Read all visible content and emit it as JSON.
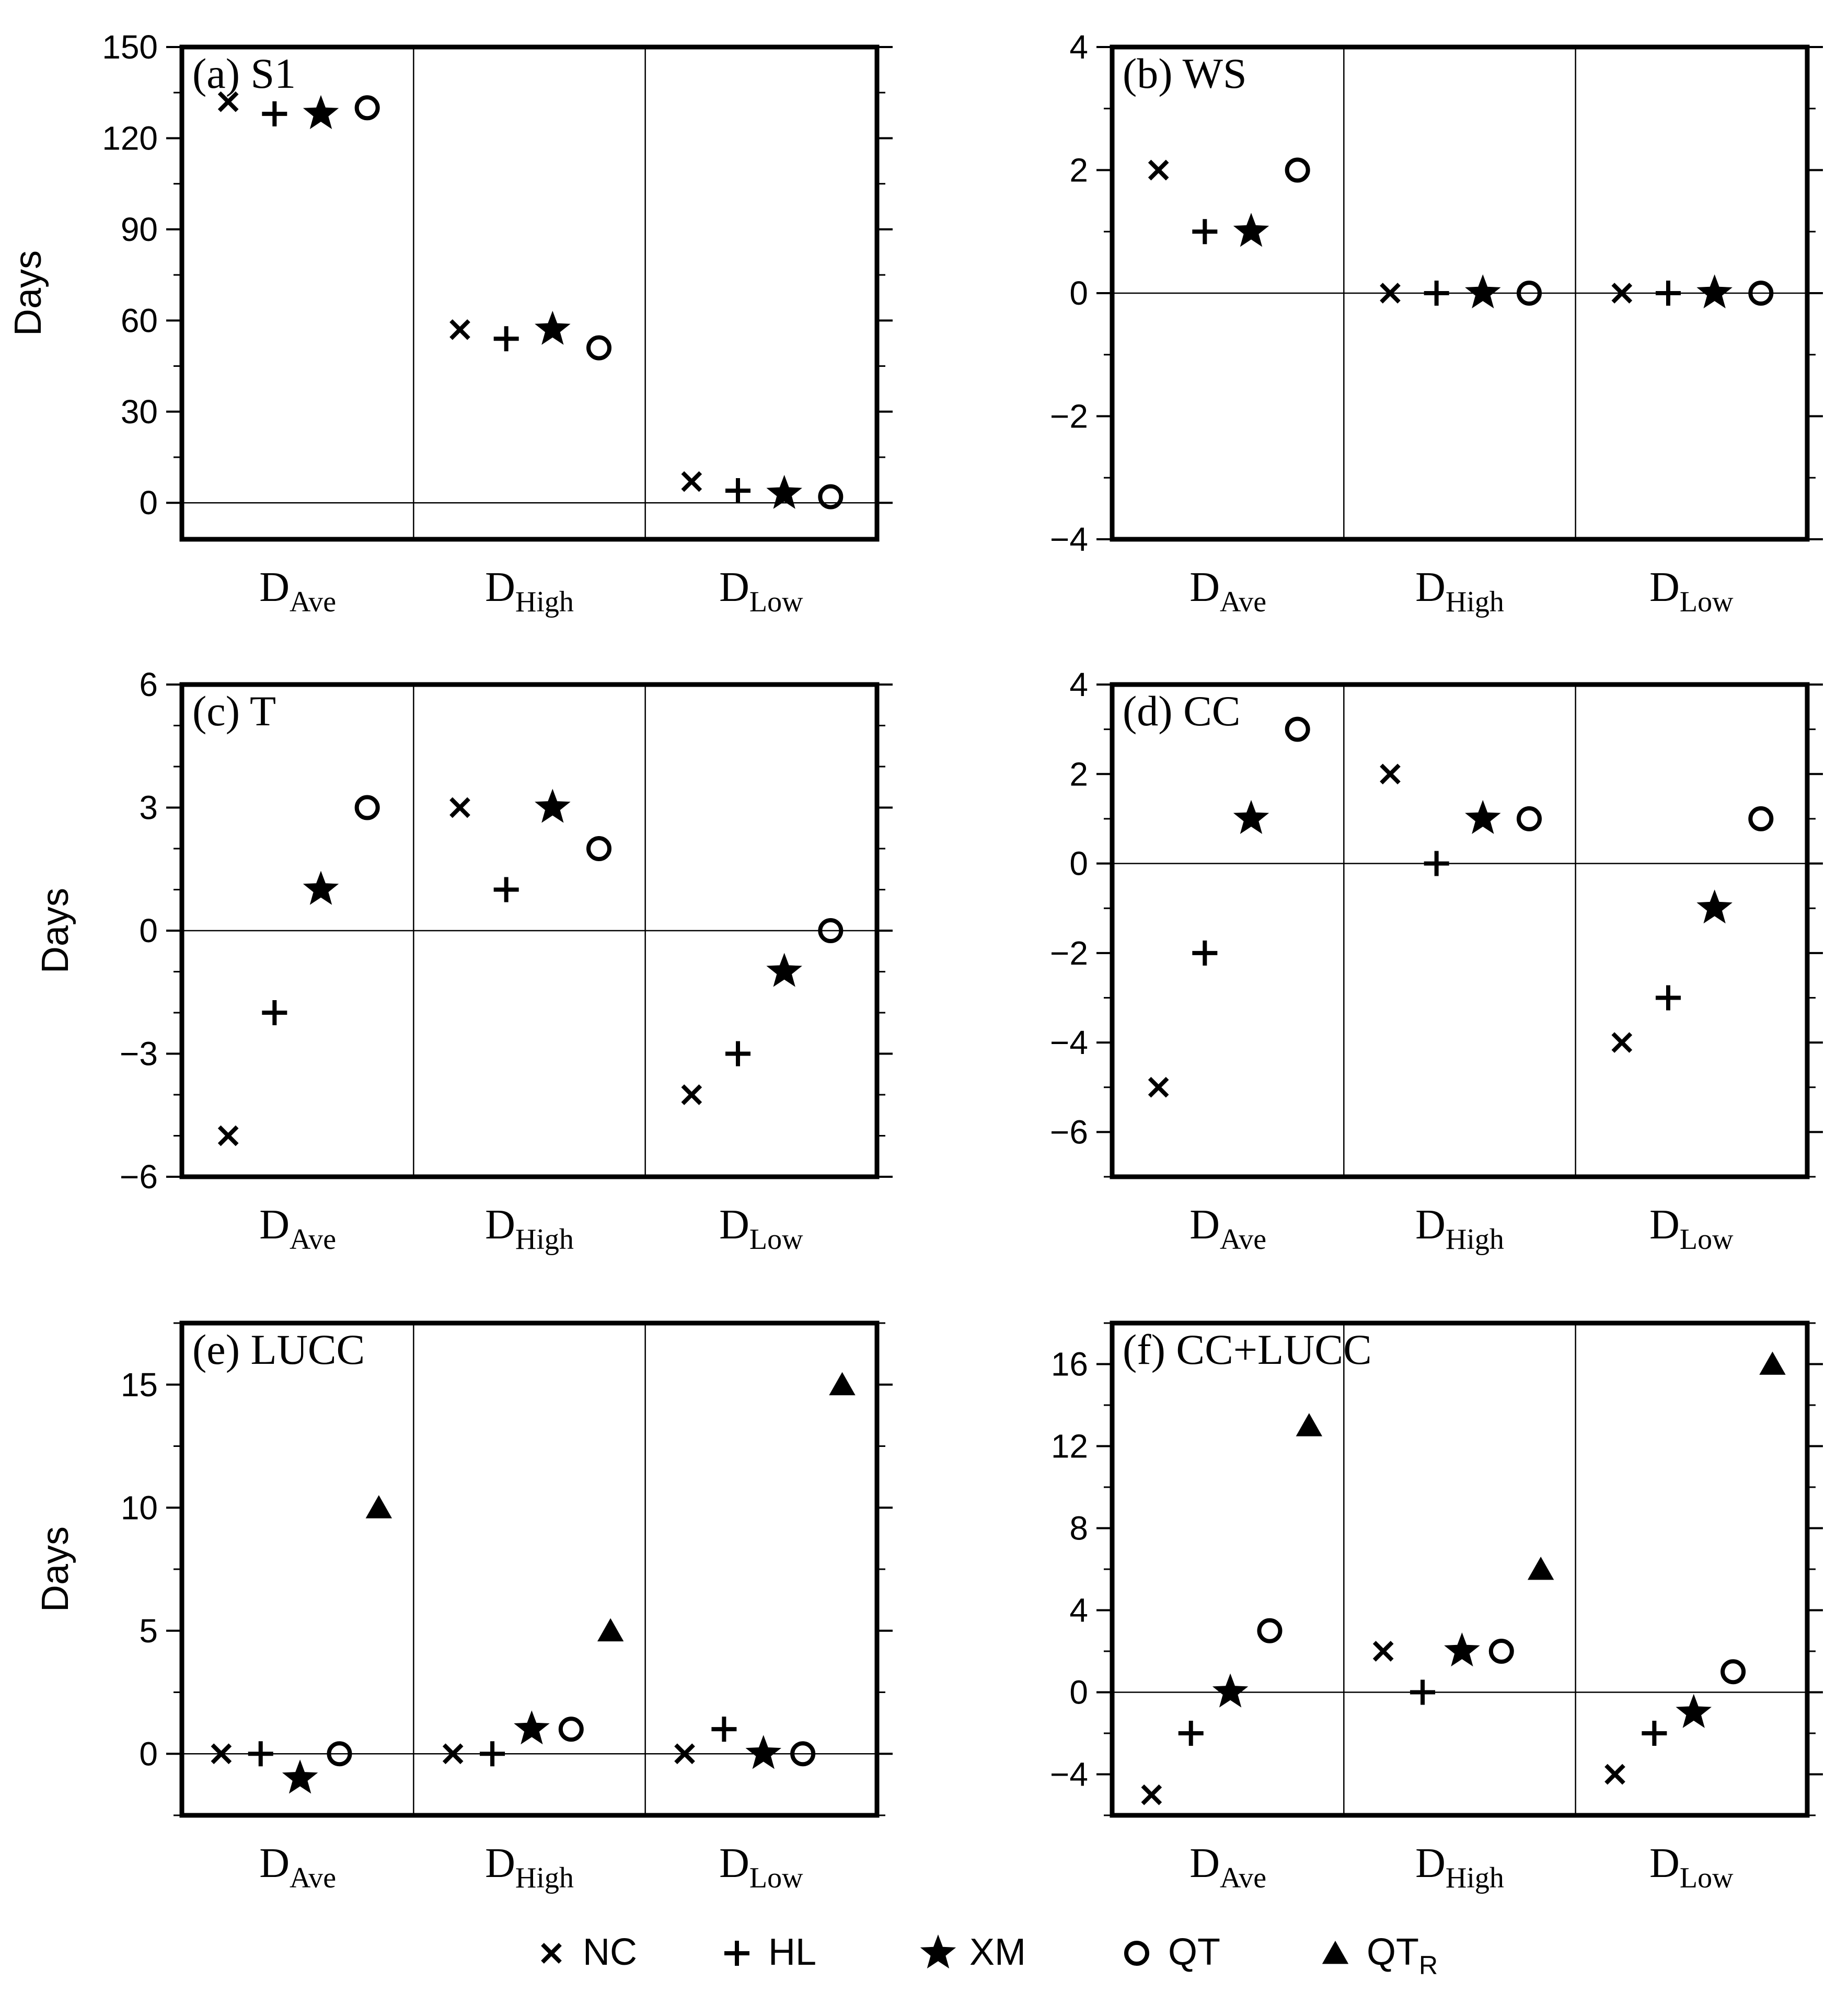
{
  "legend": {
    "entries": [
      {
        "key": "NC",
        "label": "NC",
        "sub": "",
        "marker": "x-mark-icon"
      },
      {
        "key": "HL",
        "label": "HL",
        "sub": "",
        "marker": "plus-mark-icon"
      },
      {
        "key": "XM",
        "label": "XM",
        "sub": "",
        "marker": "star-mark-icon"
      },
      {
        "key": "QT",
        "label": "QT",
        "sub": "",
        "marker": "circle-mark-icon"
      },
      {
        "key": "QTR",
        "label": "QT",
        "sub": "R",
        "marker": "triangle-mark-icon"
      }
    ]
  },
  "chart_data": [
    {
      "type": "scatter",
      "title": "(a) S1",
      "ylabel": "Days",
      "ylim": [
        -12,
        150
      ],
      "yticks": [
        0,
        30,
        60,
        90,
        120,
        150
      ],
      "yticklabels": [
        "0",
        "30",
        "60",
        "90",
        "120",
        "150"
      ],
      "minor_step": 15,
      "categories": [
        {
          "base": "D",
          "sub": "Ave"
        },
        {
          "base": "D",
          "sub": "High"
        },
        {
          "base": "D",
          "sub": "Low"
        }
      ],
      "series": [
        {
          "name": "NC",
          "values": [
            132,
            57,
            7
          ]
        },
        {
          "name": "HL",
          "values": [
            128,
            54,
            4
          ]
        },
        {
          "name": "XM",
          "values": [
            128,
            57,
            3
          ]
        },
        {
          "name": "QT",
          "values": [
            130,
            51,
            2
          ]
        }
      ]
    },
    {
      "type": "scatter",
      "title": "(b) WS",
      "ylabel": "",
      "ylim": [
        -4,
        4
      ],
      "yticks": [
        -4,
        -2,
        0,
        2,
        4
      ],
      "yticklabels": [
        "−4",
        "−2",
        "0",
        "2",
        "4"
      ],
      "minor_step": 1,
      "categories": [
        {
          "base": "D",
          "sub": "Ave"
        },
        {
          "base": "D",
          "sub": "High"
        },
        {
          "base": "D",
          "sub": "Low"
        }
      ],
      "series": [
        {
          "name": "NC",
          "values": [
            2,
            0,
            0
          ]
        },
        {
          "name": "HL",
          "values": [
            1,
            0,
            0
          ]
        },
        {
          "name": "XM",
          "values": [
            1,
            0,
            0
          ]
        },
        {
          "name": "QT",
          "values": [
            2,
            0,
            0
          ]
        }
      ]
    },
    {
      "type": "scatter",
      "title": "(c) T",
      "ylabel": "Days",
      "ylim": [
        -6,
        6
      ],
      "yticks": [
        -6,
        -3,
        0,
        3,
        6
      ],
      "yticklabels": [
        "−6",
        "−3",
        "0",
        "3",
        "6"
      ],
      "minor_step": 1,
      "categories": [
        {
          "base": "D",
          "sub": "Ave"
        },
        {
          "base": "D",
          "sub": "High"
        },
        {
          "base": "D",
          "sub": "Low"
        }
      ],
      "series": [
        {
          "name": "NC",
          "values": [
            -5,
            3,
            -4
          ]
        },
        {
          "name": "HL",
          "values": [
            -2,
            1,
            -3
          ]
        },
        {
          "name": "XM",
          "values": [
            1,
            3,
            -1
          ]
        },
        {
          "name": "QT",
          "values": [
            3,
            2,
            0
          ]
        }
      ]
    },
    {
      "type": "scatter",
      "title": "(d) CC",
      "ylabel": "",
      "ylim": [
        -7,
        4
      ],
      "yticks": [
        -6,
        -4,
        -2,
        0,
        2,
        4
      ],
      "yticklabels": [
        "−6",
        "−4",
        "−2",
        "0",
        "2",
        "4"
      ],
      "minor_step": 1,
      "categories": [
        {
          "base": "D",
          "sub": "Ave"
        },
        {
          "base": "D",
          "sub": "High"
        },
        {
          "base": "D",
          "sub": "Low"
        }
      ],
      "series": [
        {
          "name": "NC",
          "values": [
            -5,
            2,
            -4
          ]
        },
        {
          "name": "HL",
          "values": [
            -2,
            0,
            -3
          ]
        },
        {
          "name": "XM",
          "values": [
            1,
            1,
            -1
          ]
        },
        {
          "name": "QT",
          "values": [
            3,
            1,
            1
          ]
        }
      ]
    },
    {
      "type": "scatter",
      "title": "(e) LUCC",
      "ylabel": "Days",
      "ylim": [
        -2.5,
        17.5
      ],
      "yticks": [
        0,
        5,
        10,
        15
      ],
      "yticklabels": [
        "0",
        "5",
        "10",
        "15"
      ],
      "minor_step": 2.5,
      "categories": [
        {
          "base": "D",
          "sub": "Ave"
        },
        {
          "base": "D",
          "sub": "High"
        },
        {
          "base": "D",
          "sub": "Low"
        }
      ],
      "series": [
        {
          "name": "NC",
          "values": [
            0,
            0,
            0
          ]
        },
        {
          "name": "HL",
          "values": [
            0,
            0,
            1
          ]
        },
        {
          "name": "XM",
          "values": [
            -1,
            1,
            0
          ]
        },
        {
          "name": "QT",
          "values": [
            0,
            1,
            0
          ]
        },
        {
          "name": "QTR",
          "values": [
            10,
            5,
            15
          ]
        }
      ]
    },
    {
      "type": "scatter",
      "title": "(f) CC+LUCC",
      "ylabel": "",
      "ylim": [
        -6,
        18
      ],
      "yticks": [
        -4,
        0,
        4,
        8,
        12,
        16
      ],
      "yticklabels": [
        "−4",
        "0",
        "4",
        "8",
        "12",
        "16"
      ],
      "minor_step": 2,
      "categories": [
        {
          "base": "D",
          "sub": "Ave"
        },
        {
          "base": "D",
          "sub": "High"
        },
        {
          "base": "D",
          "sub": "Low"
        }
      ],
      "series": [
        {
          "name": "NC",
          "values": [
            -5,
            2,
            -4
          ]
        },
        {
          "name": "HL",
          "values": [
            -2,
            0,
            -2
          ]
        },
        {
          "name": "XM",
          "values": [
            0,
            2,
            -1
          ]
        },
        {
          "name": "QT",
          "values": [
            3,
            2,
            1
          ]
        },
        {
          "name": "QTR",
          "values": [
            13,
            6,
            16
          ]
        }
      ]
    }
  ]
}
